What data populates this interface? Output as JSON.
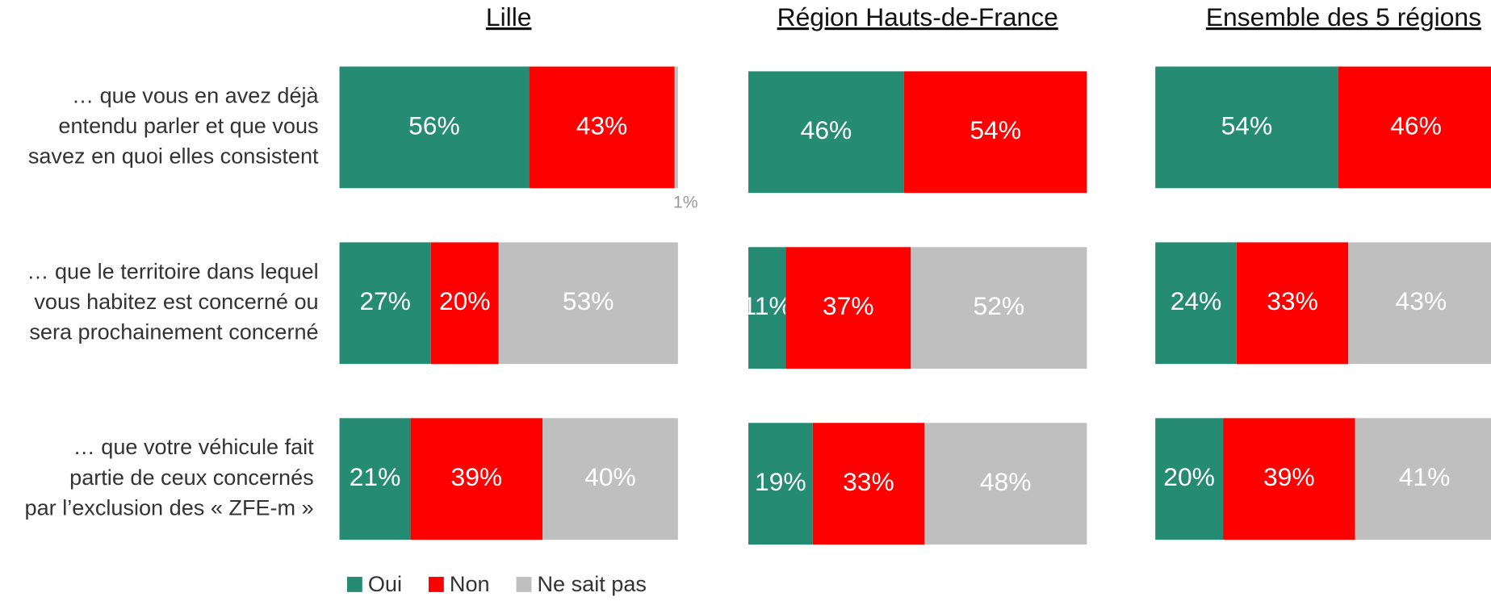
{
  "chart_data": {
    "type": "bar",
    "orientation": "horizontal",
    "stacked": true,
    "categories": [
      [
        "… que vous en avez déjà",
        "entendu parler et que vous",
        "savez en quoi elles consistent"
      ],
      [
        "… que le territoire dans lequel",
        "vous habitez est concerné ou",
        "sera prochainement concerné"
      ],
      [
        "… que votre véhicule fait",
        "partie de ceux concernés",
        "par l’exclusion des « ZFE-m »"
      ]
    ],
    "series": [
      {
        "name": "Oui",
        "color": "#268b73"
      },
      {
        "name": "Non",
        "color": "#ff0000"
      },
      {
        "name": "Ne sait pas",
        "color": "#bfbfbf"
      }
    ],
    "xlim": [
      0,
      100
    ],
    "panels": [
      {
        "title": "Lille",
        "values": [
          [
            56,
            27,
            21
          ],
          [
            43,
            20,
            39
          ],
          [
            1,
            53,
            40
          ]
        ],
        "value_labels": [
          [
            "56%",
            "27%",
            "21%"
          ],
          [
            "43%",
            "20%",
            "39%"
          ],
          [
            "1%",
            "53%",
            "40%"
          ]
        ]
      },
      {
        "title": "Région Hauts-de-France",
        "values": [
          [
            46,
            11,
            19
          ],
          [
            54,
            37,
            33
          ],
          [
            null,
            52,
            48
          ]
        ],
        "value_labels": [
          [
            "46%",
            "11%",
            "19%"
          ],
          [
            "54%",
            "37%",
            "33%"
          ],
          [
            null,
            "52%",
            "48%"
          ]
        ]
      },
      {
        "title": "Ensemble des 5 régions",
        "values": [
          [
            54,
            24,
            20
          ],
          [
            46,
            33,
            39
          ],
          [
            null,
            43,
            41
          ]
        ],
        "value_labels": [
          [
            "54%",
            "24%",
            "20%"
          ],
          [
            "46%",
            "33%",
            "39%"
          ],
          [
            null,
            "43%",
            "41%"
          ]
        ]
      }
    ]
  }
}
